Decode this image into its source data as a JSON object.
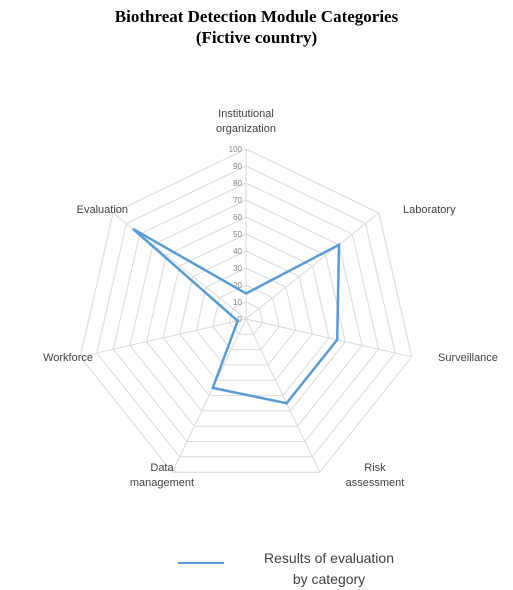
{
  "chart_data": {
    "type": "radar",
    "title_lines": [
      "Biothreat Detection Module Categories",
      "(Fictive country)"
    ],
    "categories": [
      [
        "Institutional",
        "organization"
      ],
      [
        "Laboratory"
      ],
      [
        "Surveillance"
      ],
      [
        "Risk",
        "assessment"
      ],
      [
        "Data",
        "management"
      ],
      [
        "Workforce"
      ],
      [
        "Evaluation"
      ]
    ],
    "series": [
      {
        "name_lines": [
          "Results of evaluation",
          "by category"
        ],
        "values": [
          15,
          70,
          55,
          55,
          45,
          5,
          85
        ],
        "color": "#5b9bd5"
      }
    ],
    "rmin": 0,
    "rmax": 100,
    "ticks": [
      0,
      10,
      20,
      30,
      40,
      50,
      60,
      70,
      80,
      90,
      100
    ],
    "grid": true,
    "legend_position": "bottom"
  }
}
